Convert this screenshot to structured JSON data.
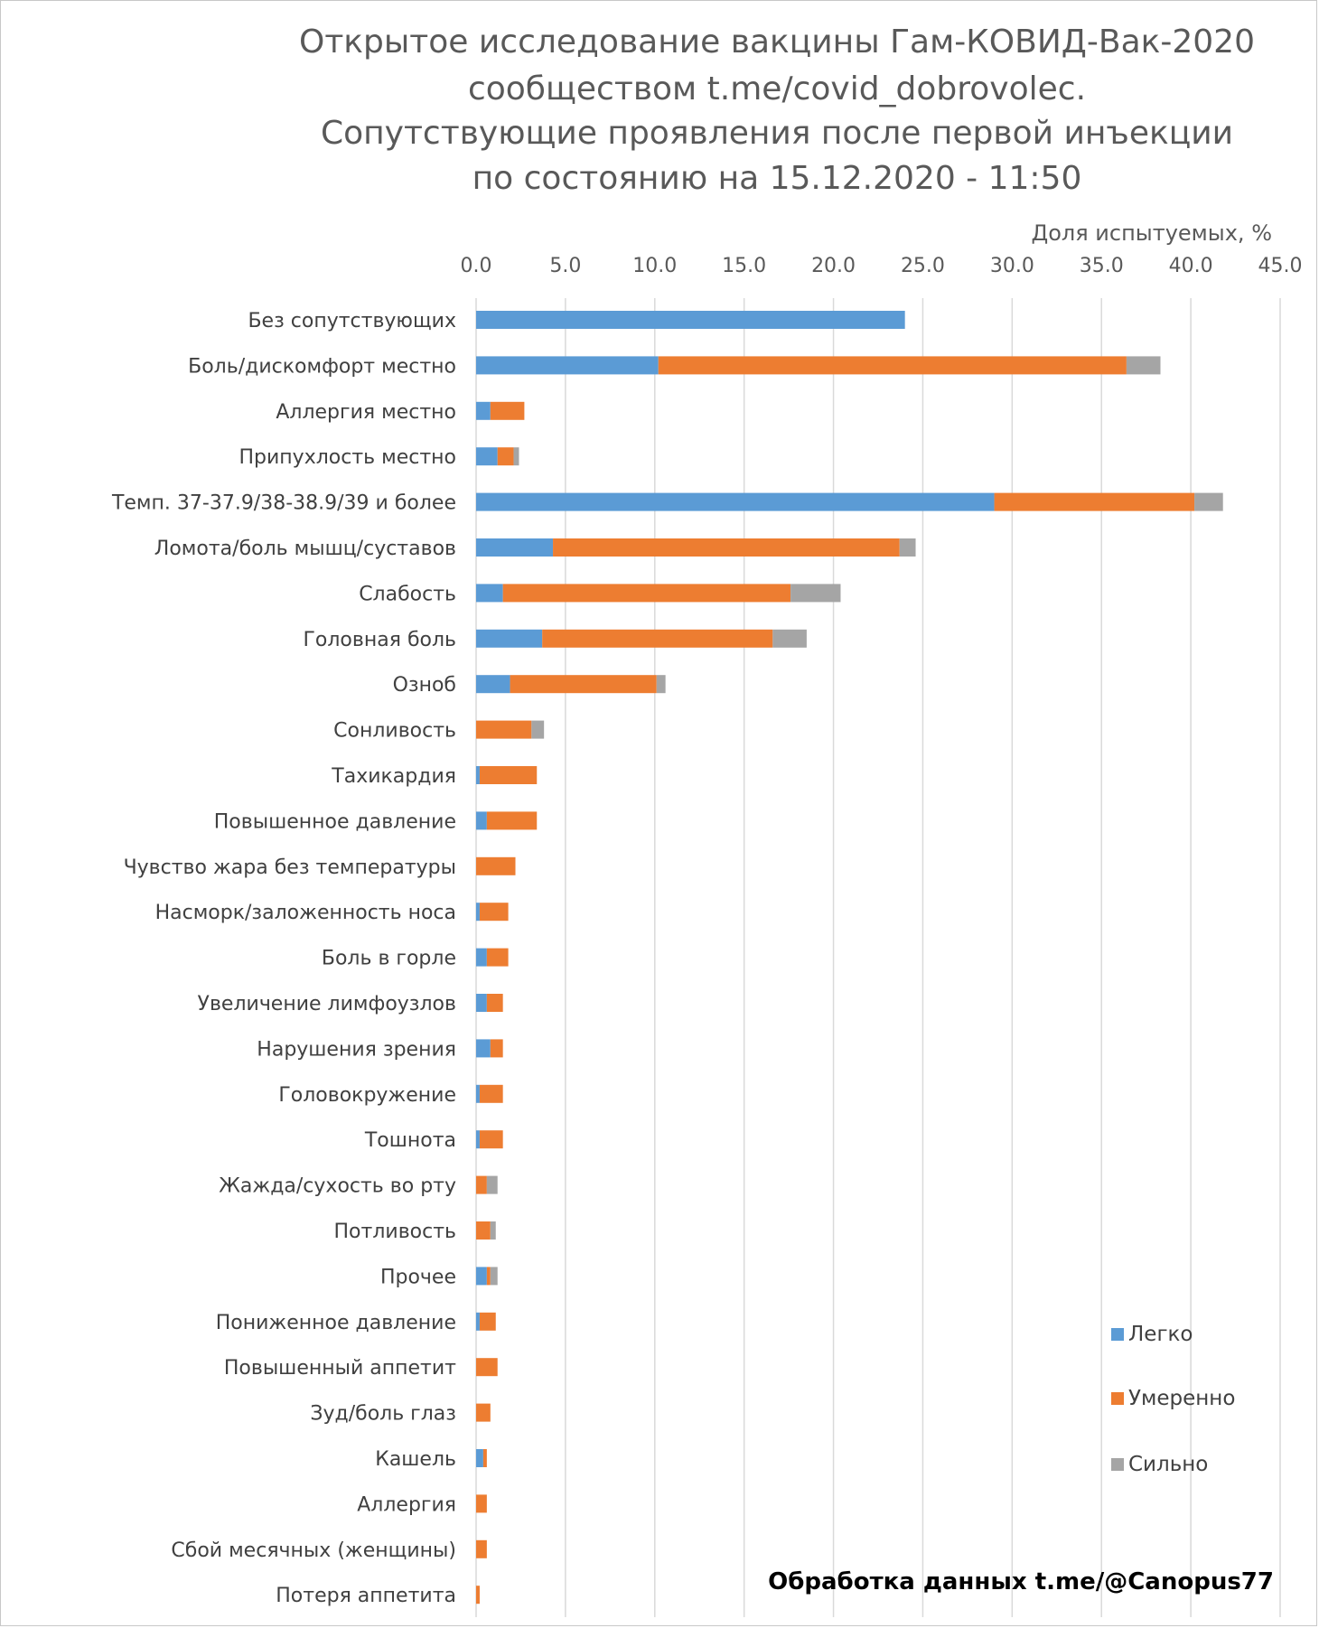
{
  "chart_data": {
    "type": "bar",
    "orientation": "horizontal",
    "stacked": true,
    "title": [
      "Открытое исследование вакцины Гам-КОВИД-Вак-2020",
      "сообществом t.me/covid_dobrovolec.",
      "Сопутствующие проявления после первой инъекции",
      "по состоянию на 15.12.2020 - 11:50"
    ],
    "xlabel": "Доля испытуемых, %",
    "xlim": [
      0,
      45
    ],
    "xticks": [
      "0.0",
      "5.0",
      "10.0",
      "15.0",
      "20.0",
      "25.0",
      "30.0",
      "35.0",
      "40.0",
      "45.0"
    ],
    "x_axis_position": "top",
    "grid": true,
    "legend_position": "bottom-right",
    "categories": [
      "Без сопутствующих",
      "Боль/дискомфорт местно",
      "Аллергия местно",
      "Припухлость местно",
      "Темп. 37-37.9/38-38.9/39 и более",
      "Ломота/боль мышц/суставов",
      "Слабость",
      "Головная боль",
      "Озноб",
      "Сонливость",
      "Тахикардия",
      "Повышенное давление",
      "Чувство жара без температуры",
      "Насморк/заложенность носа",
      "Боль в горле",
      "Увеличение лимфоузлов",
      "Нарушения зрения",
      "Головокружение",
      "Тошнота",
      "Жажда/сухость во рту",
      "Потливость",
      "Прочее",
      "Пониженное давление",
      "Повышенный аппетит",
      "Зуд/боль глаз",
      "Кашель",
      "Аллергия",
      "Сбой месячных (женщины)",
      "Потеря аппетита"
    ],
    "series": [
      {
        "name": "Легко",
        "color": "#5b9bd5",
        "values": [
          24.0,
          10.2,
          0.8,
          1.2,
          29.0,
          4.3,
          1.5,
          3.7,
          1.9,
          0.0,
          0.2,
          0.6,
          0.0,
          0.2,
          0.6,
          0.6,
          0.8,
          0.2,
          0.2,
          0.0,
          0.0,
          0.6,
          0.2,
          0.0,
          0.0,
          0.4,
          0.0,
          0.0,
          0.0
        ]
      },
      {
        "name": "Умеренно",
        "color": "#ed7d31",
        "values": [
          0.0,
          26.2,
          1.9,
          0.9,
          11.2,
          19.4,
          16.1,
          12.9,
          8.2,
          3.1,
          3.2,
          2.8,
          2.2,
          1.6,
          1.2,
          0.9,
          0.7,
          1.3,
          1.3,
          0.6,
          0.8,
          0.2,
          0.9,
          1.2,
          0.8,
          0.2,
          0.6,
          0.6,
          0.2
        ]
      },
      {
        "name": "Сильно",
        "color": "#a5a5a5",
        "values": [
          0.0,
          1.9,
          0.0,
          0.3,
          1.6,
          0.9,
          2.8,
          1.9,
          0.5,
          0.7,
          0.0,
          0.0,
          0.0,
          0.0,
          0.0,
          0.0,
          0.0,
          0.0,
          0.0,
          0.6,
          0.3,
          0.4,
          0.0,
          0.0,
          0.0,
          0.0,
          0.0,
          0.0,
          0.0
        ]
      }
    ]
  },
  "credit": "Обработка данных t.me/@Canopus77"
}
